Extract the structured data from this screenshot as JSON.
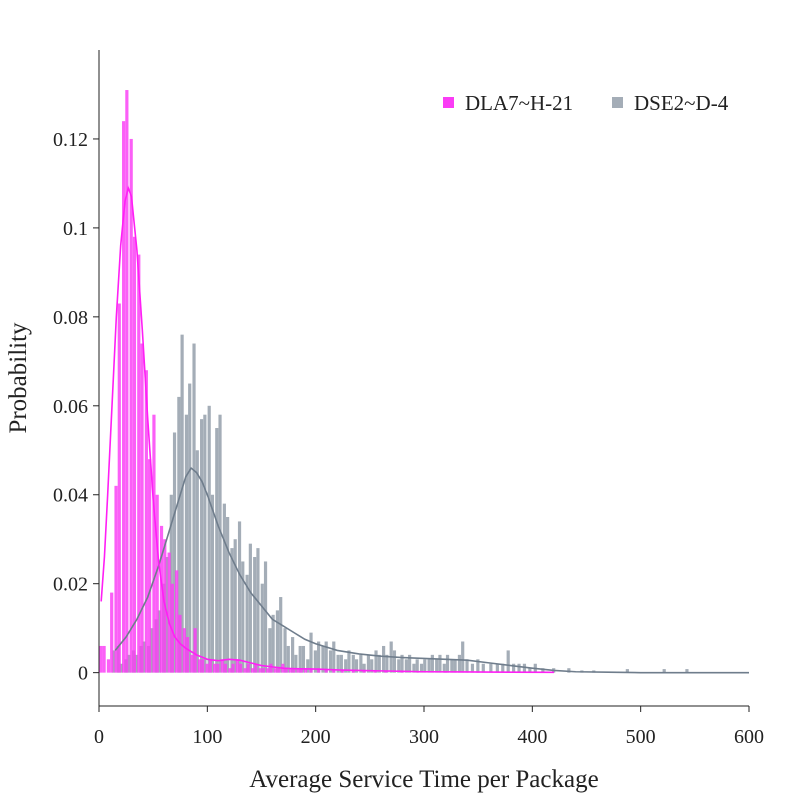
{
  "chart_data": {
    "type": "bar",
    "title": "",
    "xlabel": "Average Service Time per Package",
    "ylabel": "Probability",
    "xlim": [
      0,
      600
    ],
    "ylim": [
      -0.0075,
      0.14
    ],
    "x_ticks": [
      0,
      100,
      200,
      300,
      400,
      500,
      600
    ],
    "y_ticks": [
      0,
      0.02,
      0.04,
      0.06,
      0.08,
      0.1,
      0.12
    ],
    "x_tick_labels": [
      "0",
      "100",
      "200",
      "300",
      "400",
      "500",
      "600"
    ],
    "y_tick_labels": [
      "0",
      "0.02",
      "0.04",
      "0.06",
      "0.08",
      "0.1",
      "0.12"
    ],
    "bin_width": 3.5,
    "grid": false,
    "legend_position": "top-right",
    "series": [
      {
        "name": "DSE2~D-4",
        "color": "#a4adb7",
        "curve_color": "#6f7d8c",
        "bins": [
          [
            14,
            0.005
          ],
          [
            18,
            0.006
          ],
          [
            21,
            0.002
          ],
          [
            25,
            0.003
          ],
          [
            28,
            0.004
          ],
          [
            32,
            0.005
          ],
          [
            35,
            0.004
          ],
          [
            39,
            0.006
          ],
          [
            42,
            0.007
          ],
          [
            46,
            0.006
          ],
          [
            49,
            0.01
          ],
          [
            53,
            0.012
          ],
          [
            56,
            0.014
          ],
          [
            60,
            0.02
          ],
          [
            63,
            0.026
          ],
          [
            67,
            0.04
          ],
          [
            70,
            0.054
          ],
          [
            74,
            0.062
          ],
          [
            77,
            0.076
          ],
          [
            81,
            0.058
          ],
          [
            84,
            0.065
          ],
          [
            88,
            0.074
          ],
          [
            91,
            0.05
          ],
          [
            95,
            0.057
          ],
          [
            98,
            0.058
          ],
          [
            102,
            0.06
          ],
          [
            105,
            0.04
          ],
          [
            109,
            0.055
          ],
          [
            112,
            0.058
          ],
          [
            116,
            0.038
          ],
          [
            119,
            0.035
          ],
          [
            123,
            0.028
          ],
          [
            126,
            0.03
          ],
          [
            130,
            0.034
          ],
          [
            133,
            0.025
          ],
          [
            137,
            0.022
          ],
          [
            140,
            0.029
          ],
          [
            144,
            0.026
          ],
          [
            147,
            0.028
          ],
          [
            151,
            0.02
          ],
          [
            154,
            0.025
          ],
          [
            158,
            0.01
          ],
          [
            161,
            0.013
          ],
          [
            165,
            0.014
          ],
          [
            168,
            0.017
          ],
          [
            172,
            0.01
          ],
          [
            175,
            0.006
          ],
          [
            179,
            0.008
          ],
          [
            182,
            0.004
          ],
          [
            186,
            0.006
          ],
          [
            189,
            0.006
          ],
          [
            193,
            0.003
          ],
          [
            196,
            0.009
          ],
          [
            200,
            0.005
          ],
          [
            203,
            0.007
          ],
          [
            207,
            0.006
          ],
          [
            210,
            0.007
          ],
          [
            214,
            0.005
          ],
          [
            217,
            0.007
          ],
          [
            221,
            0.004
          ],
          [
            224,
            0.004
          ],
          [
            228,
            0.003
          ],
          [
            231,
            0.005
          ],
          [
            235,
            0.004
          ],
          [
            238,
            0.003
          ],
          [
            242,
            0.004
          ],
          [
            245,
            0.002
          ],
          [
            249,
            0.004
          ],
          [
            252,
            0.003
          ],
          [
            256,
            0.005
          ],
          [
            259,
            0.004
          ],
          [
            263,
            0.006
          ],
          [
            266,
            0.004
          ],
          [
            270,
            0.007
          ],
          [
            273,
            0.005
          ],
          [
            277,
            0.003
          ],
          [
            280,
            0.004
          ],
          [
            284,
            0.003
          ],
          [
            287,
            0.004
          ],
          [
            291,
            0.002
          ],
          [
            294,
            0.003
          ],
          [
            298,
            0.002
          ],
          [
            301,
            0.003
          ],
          [
            305,
            0.003
          ],
          [
            308,
            0.004
          ],
          [
            312,
            0.003
          ],
          [
            315,
            0.004
          ],
          [
            319,
            0.002
          ],
          [
            322,
            0.004
          ],
          [
            326,
            0.003
          ],
          [
            329,
            0.003
          ],
          [
            333,
            0.004
          ],
          [
            336,
            0.007
          ],
          [
            340,
            0.003
          ],
          [
            345,
            0.002
          ],
          [
            350,
            0.003
          ],
          [
            355,
            0.002
          ],
          [
            362,
            0.002
          ],
          [
            368,
            0.002
          ],
          [
            373,
            0.002
          ],
          [
            378,
            0.005
          ],
          [
            383,
            0.002
          ],
          [
            388,
            0.002
          ],
          [
            393,
            0.002
          ],
          [
            398,
            0.001
          ],
          [
            403,
            0.002
          ],
          [
            410,
            0.001
          ],
          [
            420,
            0.001
          ],
          [
            434,
            0.001
          ],
          [
            446,
            0.0005
          ],
          [
            457,
            0.0005
          ],
          [
            488,
            0.0008
          ],
          [
            522,
            0.0008
          ],
          [
            543,
            0.0008
          ]
        ],
        "curve": [
          [
            15,
            0.005
          ],
          [
            25,
            0.008
          ],
          [
            35,
            0.012
          ],
          [
            45,
            0.017
          ],
          [
            55,
            0.024
          ],
          [
            65,
            0.032
          ],
          [
            75,
            0.04
          ],
          [
            80,
            0.044
          ],
          [
            85,
            0.046
          ],
          [
            90,
            0.045
          ],
          [
            95,
            0.043
          ],
          [
            100,
            0.04
          ],
          [
            110,
            0.033
          ],
          [
            120,
            0.027
          ],
          [
            130,
            0.022
          ],
          [
            140,
            0.018
          ],
          [
            150,
            0.015
          ],
          [
            160,
            0.012
          ],
          [
            170,
            0.0105
          ],
          [
            180,
            0.009
          ],
          [
            190,
            0.0075
          ],
          [
            200,
            0.0065
          ],
          [
            220,
            0.005
          ],
          [
            240,
            0.0042
          ],
          [
            260,
            0.0037
          ],
          [
            280,
            0.0034
          ],
          [
            300,
            0.0032
          ],
          [
            320,
            0.003
          ],
          [
            340,
            0.0028
          ],
          [
            360,
            0.0022
          ],
          [
            380,
            0.0016
          ],
          [
            400,
            0.001
          ],
          [
            420,
            0.0005
          ],
          [
            440,
            0.0002
          ],
          [
            470,
            0.0001
          ],
          [
            500,
            0.0
          ],
          [
            600,
            0.0
          ]
        ]
      },
      {
        "name": "DLA7~H-21",
        "color": "#fa3cf5",
        "curve_color": "#ff1ff5",
        "bins": [
          [
            2,
            0.006
          ],
          [
            5,
            0.006
          ],
          [
            9,
            0.003
          ],
          [
            12,
            0.018
          ],
          [
            16,
            0.042
          ],
          [
            19,
            0.083
          ],
          [
            23,
            0.124
          ],
          [
            26,
            0.131
          ],
          [
            30,
            0.12
          ],
          [
            33,
            0.098
          ],
          [
            37,
            0.094
          ],
          [
            40,
            0.074
          ],
          [
            44,
            0.068
          ],
          [
            47,
            0.048
          ],
          [
            51,
            0.058
          ],
          [
            54,
            0.04
          ],
          [
            58,
            0.033
          ],
          [
            61,
            0.03
          ],
          [
            65,
            0.027
          ],
          [
            68,
            0.02
          ],
          [
            72,
            0.023
          ],
          [
            75,
            0.013
          ],
          [
            79,
            0.01
          ],
          [
            82,
            0.008
          ],
          [
            86,
            0.004
          ],
          [
            89,
            0.01
          ],
          [
            93,
            0.003
          ],
          [
            96,
            0.003
          ],
          [
            100,
            0.002
          ],
          [
            103,
            0.003
          ],
          [
            107,
            0.002
          ],
          [
            110,
            0.002
          ],
          [
            114,
            0.003
          ],
          [
            117,
            0.002
          ],
          [
            121,
            0.001
          ],
          [
            124,
            0.002
          ],
          [
            128,
            0.003
          ],
          [
            131,
            0.002
          ],
          [
            135,
            0.001
          ],
          [
            138,
            0.002
          ],
          [
            142,
            0.001
          ],
          [
            145,
            0.002
          ],
          [
            149,
            0.001
          ],
          [
            152,
            0.001
          ],
          [
            156,
            0.001
          ],
          [
            159,
            0.002
          ],
          [
            163,
            0.001
          ],
          [
            166,
            0.001
          ],
          [
            170,
            0.002
          ],
          [
            173,
            0.001
          ],
          [
            177,
            0.001
          ],
          [
            180,
            0.0008
          ],
          [
            184,
            0.001
          ],
          [
            187,
            0.001
          ],
          [
            191,
            0.0008
          ],
          [
            196,
            0.001
          ],
          [
            203,
            0.001
          ],
          [
            210,
            0.0008
          ],
          [
            217,
            0.0006
          ],
          [
            225,
            0.0006
          ],
          [
            235,
            0.0005
          ],
          [
            245,
            0.0005
          ],
          [
            255,
            0.0004
          ],
          [
            265,
            0.0004
          ],
          [
            280,
            0.0003
          ],
          [
            295,
            0.0003
          ],
          [
            320,
            0.0003
          ],
          [
            350,
            0.0002
          ],
          [
            380,
            0.0002
          ]
        ],
        "curve": [
          [
            2,
            0.016
          ],
          [
            5,
            0.026
          ],
          [
            8,
            0.04
          ],
          [
            12,
            0.06
          ],
          [
            16,
            0.08
          ],
          [
            20,
            0.096
          ],
          [
            24,
            0.106
          ],
          [
            27,
            0.109
          ],
          [
            30,
            0.107
          ],
          [
            35,
            0.095
          ],
          [
            40,
            0.077
          ],
          [
            45,
            0.057
          ],
          [
            50,
            0.039
          ],
          [
            55,
            0.025
          ],
          [
            60,
            0.016
          ],
          [
            65,
            0.011
          ],
          [
            70,
            0.008
          ],
          [
            75,
            0.0065
          ],
          [
            80,
            0.0055
          ],
          [
            90,
            0.004
          ],
          [
            100,
            0.003
          ],
          [
            110,
            0.0027
          ],
          [
            120,
            0.003
          ],
          [
            130,
            0.0028
          ],
          [
            140,
            0.0022
          ],
          [
            150,
            0.0016
          ],
          [
            160,
            0.0013
          ],
          [
            170,
            0.001
          ],
          [
            180,
            0.0009
          ],
          [
            200,
            0.0008
          ],
          [
            220,
            0.0006
          ],
          [
            240,
            0.0005
          ],
          [
            260,
            0.0004
          ],
          [
            280,
            0.0003
          ],
          [
            300,
            0.0002
          ],
          [
            340,
            0.00015
          ],
          [
            380,
            0.0001
          ],
          [
            420,
            8e-05
          ]
        ]
      }
    ]
  }
}
